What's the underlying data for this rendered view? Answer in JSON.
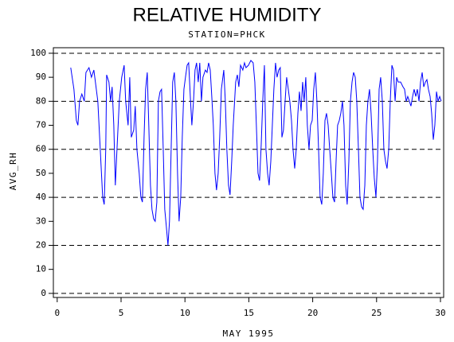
{
  "chart_data": {
    "type": "line",
    "title": "RELATIVE HUMIDITY",
    "subtitle": "STATION=PHCK",
    "x_label": "MAY 1995",
    "y_label": "AVG_RH",
    "color": "#0000ff",
    "grid": true,
    "xlim": [
      -0.3,
      30.25
    ],
    "xticks": [
      0,
      5,
      10,
      15,
      20,
      25,
      30
    ],
    "ylim": [
      -1.7,
      102.3
    ],
    "yticks": [
      0,
      10,
      20,
      30,
      40,
      50,
      60,
      70,
      80,
      90,
      100
    ],
    "grid_lines": [
      0,
      20,
      40,
      60,
      80,
      100
    ],
    "x": [
      1.06,
      1.31,
      1.5,
      1.62,
      1.75,
      1.93,
      2.12,
      2.25,
      2.49,
      2.68,
      2.87,
      2.99,
      3.18,
      3.37,
      3.56,
      3.68,
      3.8,
      3.87,
      4.05,
      4.18,
      4.3,
      4.43,
      4.55,
      4.68,
      4.86,
      5.05,
      5.24,
      5.36,
      5.55,
      5.68,
      5.8,
      5.99,
      6.11,
      6.24,
      6.42,
      6.55,
      6.67,
      6.8,
      6.92,
      7.05,
      7.17,
      7.3,
      7.42,
      7.55,
      7.67,
      7.8,
      7.92,
      8.05,
      8.17,
      8.3,
      8.42,
      8.54,
      8.67,
      8.79,
      8.92,
      9.04,
      9.17,
      9.29,
      9.42,
      9.54,
      9.67,
      9.79,
      9.92,
      10.04,
      10.17,
      10.29,
      10.42,
      10.54,
      10.67,
      10.79,
      10.91,
      11.04,
      11.16,
      11.29,
      11.41,
      11.6,
      11.73,
      11.85,
      11.98,
      12.1,
      12.22,
      12.35,
      12.47,
      12.6,
      12.72,
      12.85,
      13.04,
      13.16,
      13.28,
      13.41,
      13.53,
      13.66,
      13.78,
      13.97,
      14.1,
      14.22,
      14.35,
      14.53,
      14.66,
      14.78,
      14.97,
      15.16,
      15.34,
      15.47,
      15.59,
      15.72,
      15.84,
      15.97,
      16.09,
      16.22,
      16.34,
      16.47,
      16.59,
      16.72,
      16.84,
      16.96,
      17.09,
      17.21,
      17.34,
      17.46,
      17.59,
      17.71,
      17.84,
      17.96,
      18.09,
      18.21,
      18.34,
      18.46,
      18.59,
      18.71,
      18.84,
      18.96,
      19.09,
      19.21,
      19.33,
      19.46,
      19.58,
      19.71,
      19.83,
      19.96,
      20.08,
      20.21,
      20.33,
      20.46,
      20.58,
      20.71,
      20.83,
      20.96,
      21.08,
      21.21,
      21.33,
      21.46,
      21.58,
      21.71,
      21.83,
      21.95,
      22.08,
      22.2,
      22.33,
      22.45,
      22.58,
      22.7,
      22.83,
      22.95,
      23.08,
      23.2,
      23.33,
      23.45,
      23.58,
      23.7,
      23.83,
      23.95,
      24.08,
      24.2,
      24.32,
      24.45,
      24.57,
      24.7,
      24.82,
      24.95,
      25.07,
      25.2,
      25.32,
      25.45,
      25.57,
      25.7,
      25.82,
      25.95,
      26.07,
      26.2,
      26.32,
      26.45,
      26.57,
      26.69,
      26.88,
      27.07,
      27.19,
      27.32,
      27.44,
      27.57,
      27.69,
      27.82,
      27.94,
      28.07,
      28.19,
      28.32,
      28.44,
      28.57,
      28.69,
      28.82,
      28.94,
      29.06,
      29.19,
      29.31,
      29.44,
      29.56,
      29.69,
      29.81,
      29.94,
      30.06
    ],
    "values": [
      94,
      85,
      72,
      70,
      80,
      83,
      80,
      92,
      94,
      90,
      93,
      88,
      80,
      60,
      40,
      37,
      60,
      91,
      88,
      80,
      86,
      70,
      45,
      60,
      80,
      90,
      95,
      80,
      70,
      90,
      65,
      68,
      78,
      60,
      50,
      40,
      38,
      65,
      85,
      92,
      70,
      45,
      35,
      31,
      30,
      38,
      80,
      84,
      85,
      60,
      35,
      28,
      20,
      30,
      60,
      88,
      92,
      80,
      50,
      30,
      40,
      65,
      85,
      90,
      95,
      96,
      82,
      70,
      80,
      93,
      96,
      88,
      96,
      80,
      90,
      93,
      92,
      96,
      93,
      82,
      70,
      50,
      43,
      50,
      65,
      85,
      93,
      80,
      60,
      45,
      41,
      55,
      70,
      88,
      91,
      86,
      95,
      93,
      96,
      94,
      95,
      97,
      96,
      88,
      70,
      50,
      47,
      62,
      80,
      95,
      60,
      50,
      45,
      55,
      70,
      85,
      96,
      90,
      93,
      94,
      65,
      68,
      80,
      90,
      85,
      80,
      72,
      60,
      52,
      60,
      75,
      84,
      76,
      88,
      80,
      90,
      70,
      60,
      70,
      72,
      85,
      92,
      80,
      60,
      40,
      37,
      50,
      72,
      75,
      70,
      60,
      50,
      40,
      38,
      55,
      70,
      72,
      75,
      80,
      70,
      45,
      37,
      55,
      80,
      88,
      92,
      90,
      80,
      60,
      40,
      36,
      35,
      45,
      70,
      80,
      85,
      75,
      60,
      48,
      40,
      55,
      85,
      90,
      80,
      60,
      55,
      52,
      60,
      80,
      95,
      93,
      80,
      90,
      88,
      88,
      86,
      85,
      80,
      82,
      80,
      78,
      82,
      85,
      82,
      85,
      80,
      88,
      92,
      86,
      88,
      89,
      85,
      82,
      75,
      64,
      70,
      84,
      80,
      82,
      80
    ]
  }
}
